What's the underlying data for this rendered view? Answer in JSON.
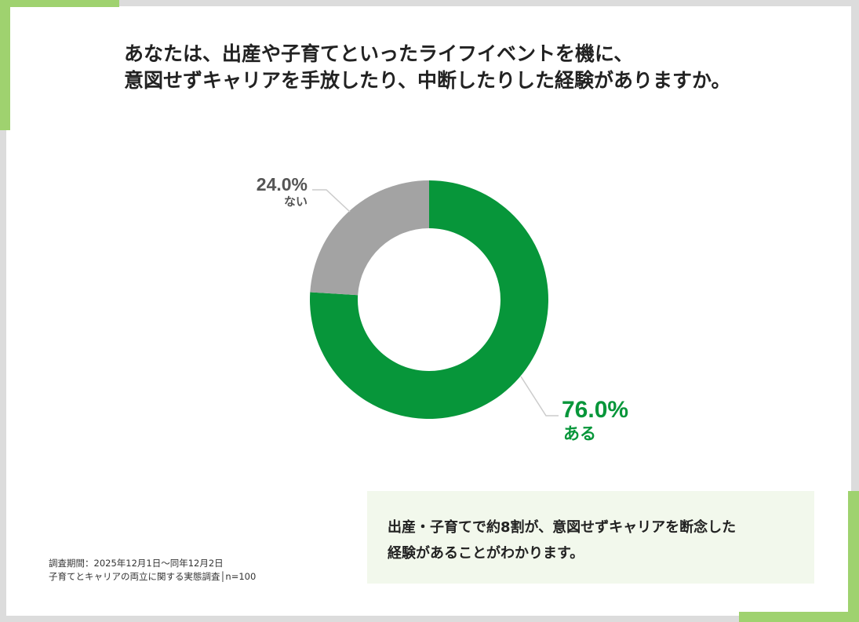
{
  "title": {
    "line1": "あなたは、出産や子育てといったライフイベントを機に、",
    "line2": "意図せずキャリアを手放したり、中断したりした経験がありますか。"
  },
  "chart_data": {
    "type": "pie",
    "slices": [
      {
        "label": "ある",
        "value": 76.0,
        "display": "76.0%",
        "color": "#07963a"
      },
      {
        "label": "ない",
        "value": 24.0,
        "display": "24.0%",
        "color": "#a3a3a3"
      }
    ]
  },
  "summary": {
    "line1": "出産・子育てで約8割が、意図せずキャリアを断念した",
    "line2": "経験があることがわかります。"
  },
  "note": {
    "line1": "調査期間：2025年12月1日～同年12月2日",
    "line2": "子育てとキャリアの両立に関する実態調査│n=100"
  },
  "colors": {
    "accent": "#9fd26f",
    "leader": "#cccccc"
  }
}
